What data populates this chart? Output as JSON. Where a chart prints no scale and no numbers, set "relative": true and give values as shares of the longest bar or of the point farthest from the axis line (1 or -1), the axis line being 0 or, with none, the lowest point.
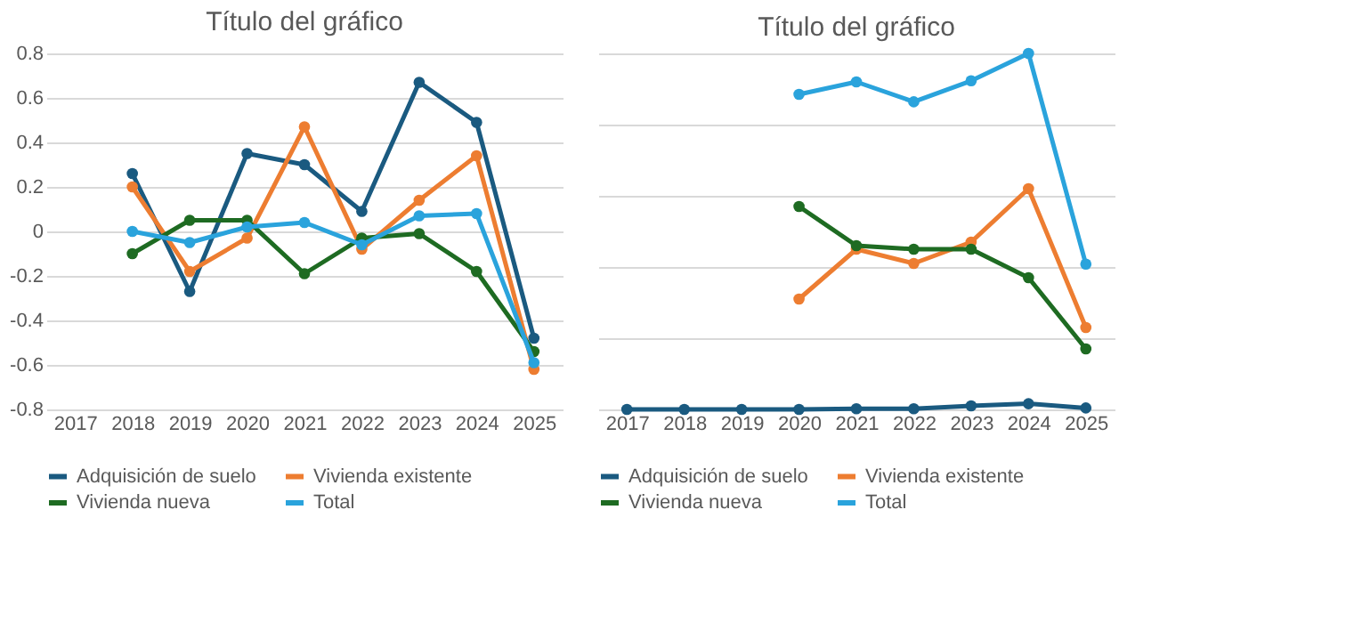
{
  "chart_data": [
    {
      "type": "line",
      "title": "Título del gráfico",
      "categories": [
        "2017",
        "2018",
        "2019",
        "2020",
        "2021",
        "2022",
        "2023",
        "2024",
        "2025"
      ],
      "ylim": [
        -0.8,
        0.8
      ],
      "yticks": [
        -0.8,
        -0.6,
        -0.4,
        -0.2,
        0,
        0.2,
        0.4,
        0.6,
        0.8
      ],
      "grid": "y",
      "legend": "bottom",
      "marker": "circle",
      "series": [
        {
          "name": "Adquisición de suelo",
          "color": "#1a5a80",
          "values": [
            null,
            0.26,
            -0.27,
            0.35,
            0.3,
            0.09,
            0.67,
            0.49,
            -0.48
          ]
        },
        {
          "name": "Vivienda existente",
          "color": "#ed7d31",
          "values": [
            null,
            0.2,
            -0.18,
            -0.03,
            0.47,
            -0.08,
            0.14,
            0.34,
            -0.62
          ]
        },
        {
          "name": "Vivienda nueva",
          "color": "#1e6b22",
          "values": [
            null,
            -0.1,
            0.05,
            0.05,
            -0.19,
            -0.03,
            -0.01,
            -0.18,
            -0.54
          ]
        },
        {
          "name": "Total",
          "color": "#2aa3dc",
          "values": [
            null,
            0.0,
            -0.05,
            0.02,
            0.04,
            -0.06,
            0.07,
            0.08,
            -0.59
          ]
        }
      ]
    },
    {
      "type": "line",
      "title": "Título del gráfico",
      "relative": true,
      "tick_labels": "x",
      "categories": [
        "2017",
        "2018",
        "2019",
        "2020",
        "2021",
        "2022",
        "2023",
        "2024",
        "2025"
      ],
      "grid": "y",
      "legend": "bottom",
      "marker": "circle",
      "series": [
        {
          "name": "Adquisición de suelo",
          "color": "#1a5a80",
          "values": [
            0,
            0,
            0,
            0,
            0.002,
            0.002,
            0.01,
            0.016,
            0.004
          ]
        },
        {
          "name": "Vivienda existente",
          "color": "#ed7d31",
          "values": [
            null,
            null,
            null,
            0.31,
            0.45,
            0.41,
            0.47,
            0.62,
            0.23
          ]
        },
        {
          "name": "Vivienda nueva",
          "color": "#1e6b22",
          "values": [
            null,
            null,
            null,
            0.57,
            0.46,
            0.45,
            0.45,
            0.37,
            0.17
          ]
        },
        {
          "name": "Total",
          "color": "#2aa3dc",
          "values": [
            null,
            null,
            null,
            0.885,
            0.92,
            0.864,
            0.923,
            1,
            0.408
          ]
        }
      ]
    }
  ]
}
